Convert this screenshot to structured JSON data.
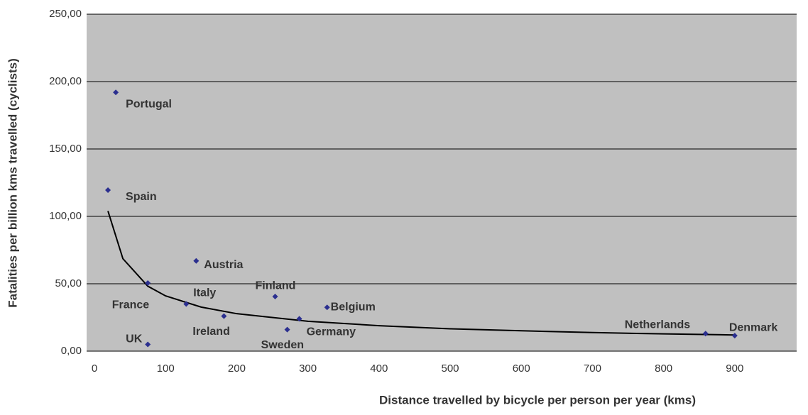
{
  "chart_data": {
    "type": "scatter",
    "x_label": "Distance travelled by bicycle per person per year (kms)",
    "y_label": "Fatalities per billion kms travelled (cyclists)",
    "point_labels": [
      "Portugal",
      "Spain",
      "Austria",
      "France",
      "Italy",
      "Ireland",
      "Finland",
      "Belgium",
      "Germany",
      "Sweden",
      "UK",
      "Netherlands",
      "Denmark"
    ],
    "x": [
      30,
      19,
      143,
      75,
      129,
      182,
      254,
      327,
      288,
      271,
      75,
      859,
      900
    ],
    "values": [
      192,
      119.5,
      67,
      50.5,
      35,
      26,
      40.5,
      32.5,
      24,
      16,
      5,
      13,
      11.5
    ],
    "color": "#2b2f8f",
    "trend": {
      "color": "#000000",
      "x": [
        19,
        40,
        75,
        100,
        150,
        200,
        300,
        400,
        500,
        600,
        700,
        800,
        900
      ],
      "values": [
        104,
        68.6,
        48.2,
        41.0,
        32.7,
        27.8,
        22.2,
        18.9,
        16.6,
        15.1,
        13.8,
        12.8,
        12.0
      ]
    },
    "xlim": [
      -11,
      987
    ],
    "ylim": [
      0,
      250
    ],
    "xticks": [
      0,
      100,
      200,
      300,
      400,
      500,
      600,
      700,
      800,
      900
    ],
    "yticks": [
      {
        "value": 0,
        "label": "0,00"
      },
      {
        "value": 50,
        "label": "50,00"
      },
      {
        "value": 100,
        "label": "100,00"
      },
      {
        "value": 150,
        "label": "150,00"
      },
      {
        "value": 200,
        "label": "200,00"
      },
      {
        "value": 250,
        "label": "250,00"
      }
    ],
    "grid": true,
    "plot_background": "#c0c0c0"
  }
}
